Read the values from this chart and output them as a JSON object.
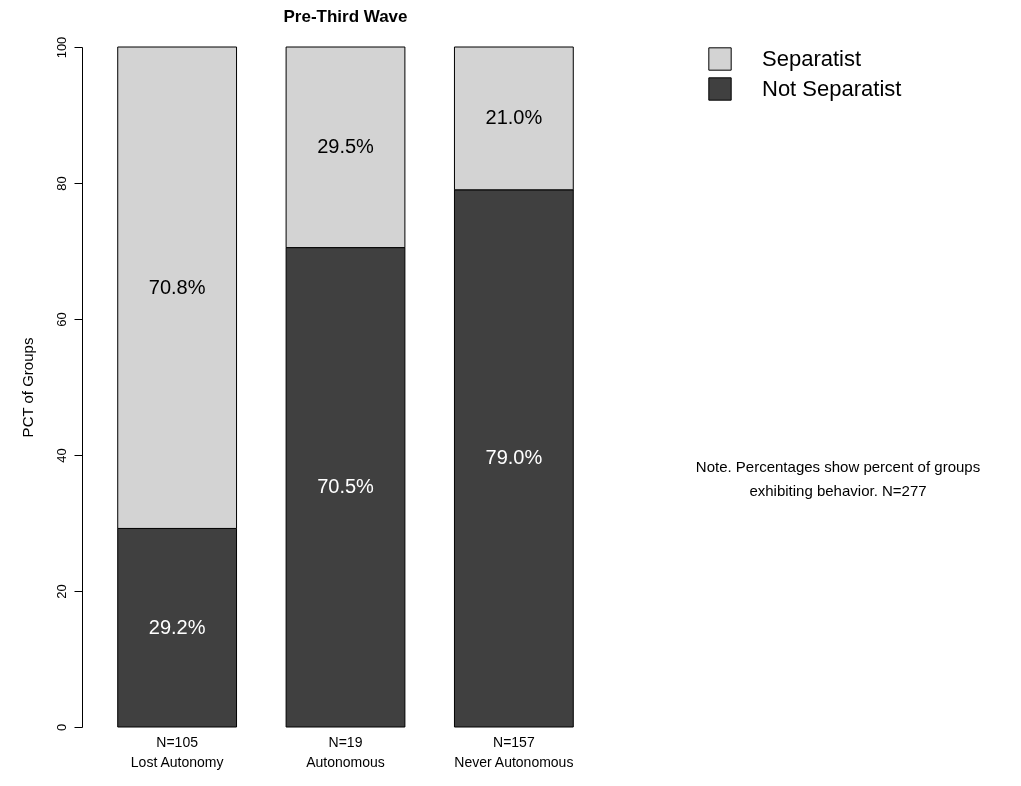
{
  "chart_data": {
    "type": "bar",
    "title": "Pre-Third Wave",
    "ylabel": "PCT of Groups",
    "stacked": true,
    "categories": [
      "N=105\nLost Autonomy",
      "N=19\nAutonomous",
      "N=157\nNever Autonomous"
    ],
    "series": [
      {
        "name": "Not Separatist",
        "color": "#404040",
        "values": [
          29.2,
          70.5,
          79.0
        ],
        "value_labels": [
          "29.2%",
          "70.5%",
          "79.0%"
        ]
      },
      {
        "name": "Separatist",
        "color": "#d3d3d3",
        "values": [
          70.8,
          29.5,
          21.0
        ],
        "value_labels": [
          "70.8%",
          "29.5%",
          "21.0%"
        ]
      }
    ],
    "ylim": [
      0,
      100
    ],
    "yticks": [
      0,
      20,
      40,
      60,
      80,
      100
    ],
    "grid": false,
    "legend": "top right",
    "annotations": [
      "Note.  Percentages show percent of groups\nexhibiting behavior.  N=277"
    ]
  }
}
